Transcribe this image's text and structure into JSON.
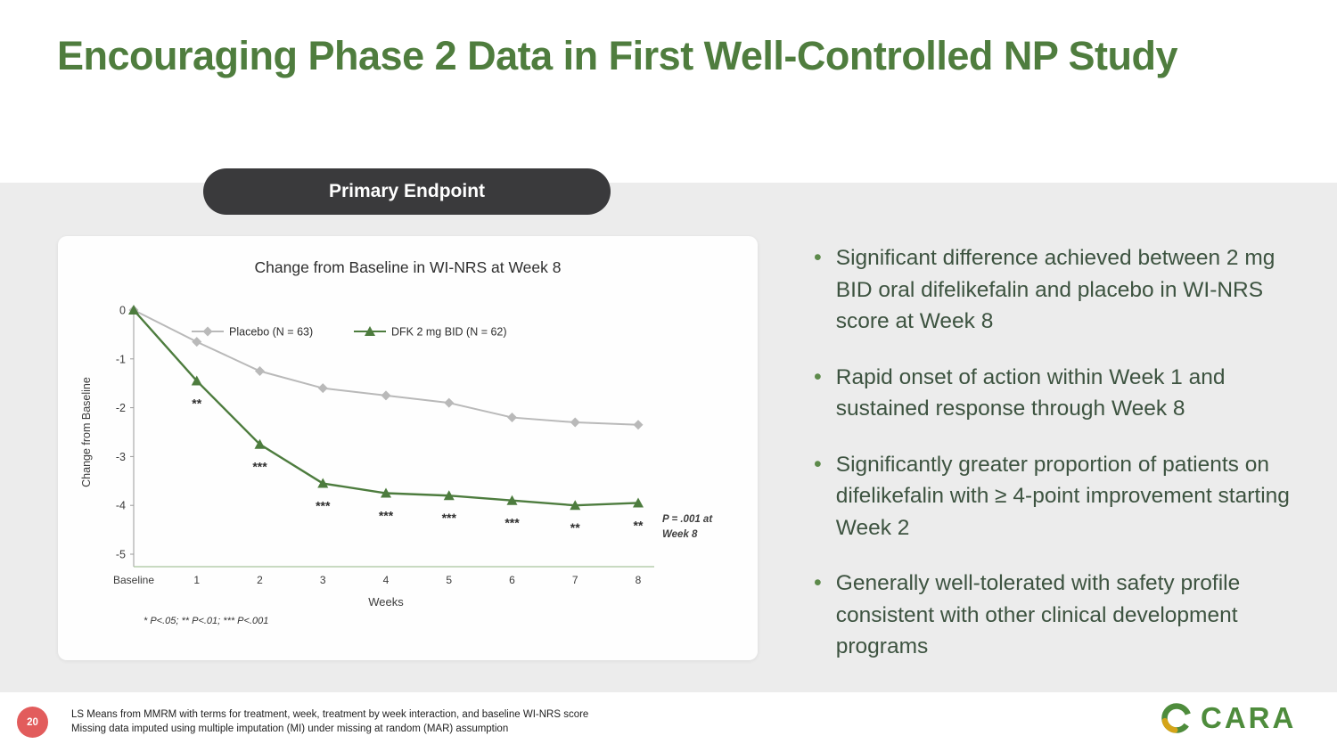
{
  "slide": {
    "title": "Encouraging Phase 2 Data in First Well-Controlled NP Study",
    "badge_label": "Primary Endpoint",
    "page_number": "20",
    "footnotes": [
      "LS Means from MMRM with terms for treatment, week, treatment by week interaction, and baseline WI-NRS score",
      "Missing data imputed using multiple imputation (MI) under missing at random (MAR) assumption"
    ],
    "logo_text": "CARA",
    "colors": {
      "title_green": "#4f7d3e",
      "bullet_text": "#3d5340",
      "badge_bg": "#3a3a3c",
      "band_gray": "#ececec",
      "page_circle": "#e25c5c",
      "logo_green": "#4e8c3c",
      "logo_gold": "#d4a418"
    }
  },
  "bullets": [
    "Significant difference achieved between 2 mg BID oral difelikefalin and placebo in WI-NRS score at Week 8",
    "Rapid onset of action within Week 1 and sustained response through Week 8",
    "Significantly greater proportion of patients on difelikefalin with ≥ 4-point improvement starting Week 2",
    "Generally well-tolerated with safety profile consistent with other clinical development programs"
  ],
  "chart_data": {
    "type": "line",
    "title": "Change from Baseline in WI-NRS at Week 8",
    "xlabel": "Weeks",
    "ylabel": "Change from Baseline",
    "x_ticks": [
      "Baseline",
      "1",
      "2",
      "3",
      "4",
      "5",
      "6",
      "7",
      "8"
    ],
    "y_ticks": [
      0,
      -1,
      -2,
      -3,
      -4,
      -5
    ],
    "ylim": [
      -5,
      0
    ],
    "grid": false,
    "legend_position": "top-center",
    "series": [
      {
        "name": "Placebo (N = 63)",
        "marker": "diamond",
        "color": "#b9b9b9",
        "values": [
          0,
          -0.65,
          -1.25,
          -1.6,
          -1.75,
          -1.9,
          -2.2,
          -2.3,
          -2.35
        ]
      },
      {
        "name": "DFK 2 mg BID (N = 62)",
        "marker": "triangle",
        "color": "#4d7c3e",
        "values": [
          0,
          -1.45,
          -2.75,
          -3.55,
          -3.75,
          -3.8,
          -3.9,
          -4.0,
          -3.95
        ]
      }
    ],
    "significance": [
      "",
      "**",
      "***",
      "***",
      "***",
      "***",
      "***",
      "**",
      "**"
    ],
    "annotation_line1": "P = .001 at",
    "annotation_line2": "Week 8",
    "footnote": "* P<.05; ** P<.01; *** P<.001"
  }
}
